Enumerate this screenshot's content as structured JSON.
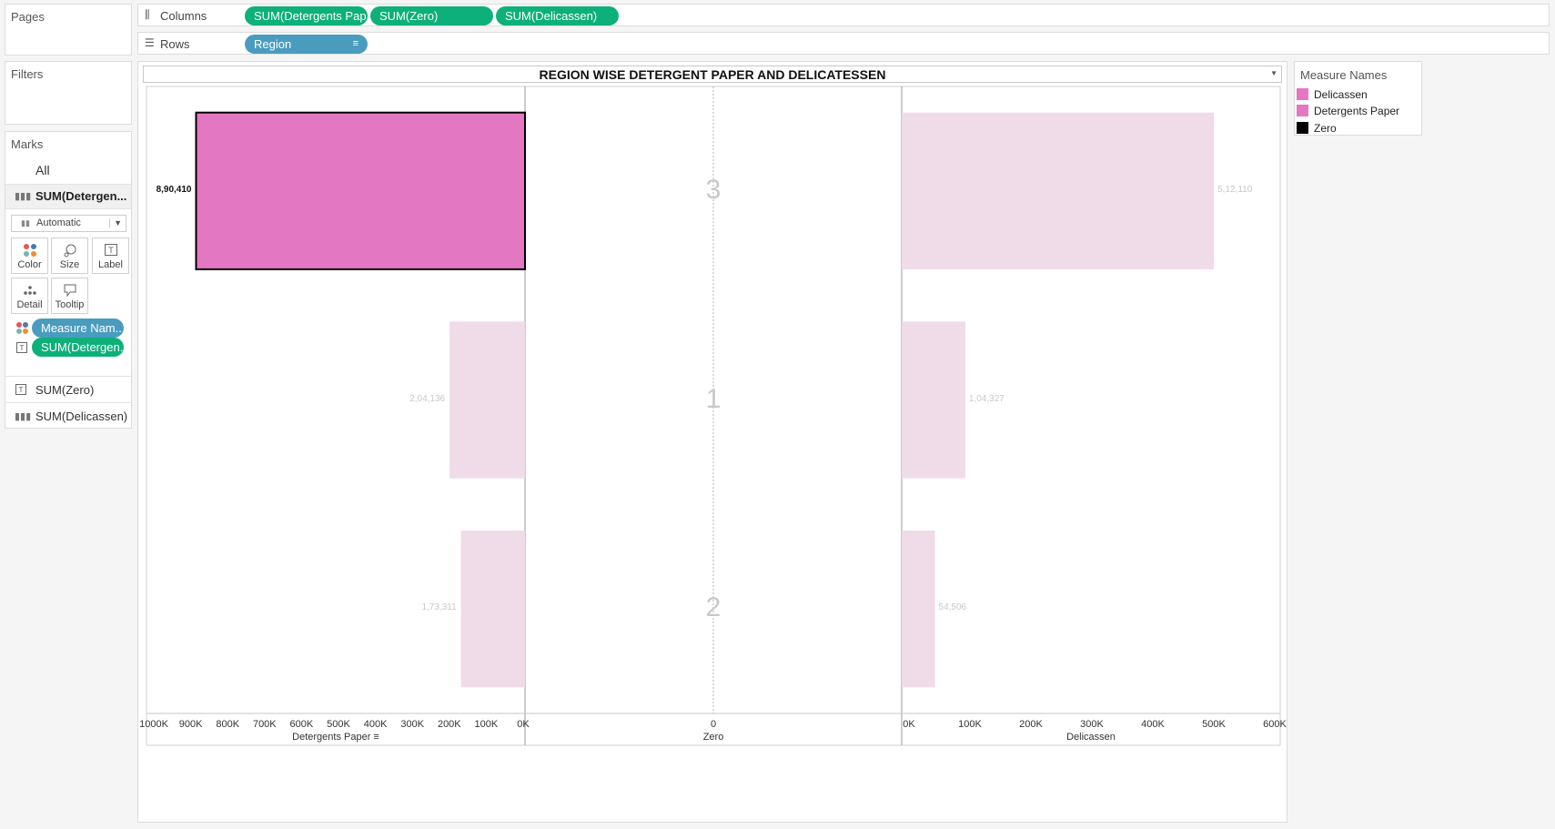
{
  "left_panel": {
    "pages_title": "Pages",
    "filters_title": "Filters",
    "marks_title": "Marks",
    "marks_all": "All",
    "marks_active": "SUM(Detergen...",
    "mark_type": "Automatic",
    "buttons": {
      "color": "Color",
      "size": "Size",
      "label": "Label",
      "detail": "Detail",
      "tooltip": "Tooltip"
    },
    "mark_pills": [
      "Measure Nam..",
      "SUM(Detergen.."
    ],
    "other_marks": [
      "SUM(Zero)",
      "SUM(Delicassen)"
    ]
  },
  "shelves": {
    "columns_label": "Columns",
    "columns_pills": [
      "SUM(Detergents Pap..",
      "SUM(Zero)",
      "SUM(Delicassen)"
    ],
    "rows_label": "Rows",
    "rows_pills": [
      "Region"
    ]
  },
  "legend": {
    "title": "Measure Names",
    "items": [
      {
        "label": "Delicassen",
        "color": "#e377c2"
      },
      {
        "label": "Detergents Paper",
        "color": "#e377c2"
      },
      {
        "label": "Zero",
        "color": "#000000"
      }
    ]
  },
  "chart_data": {
    "type": "bar",
    "title": "REGION WISE DETERGENT PAPER AND DELICATESSEN",
    "categories": [
      "3",
      "1",
      "2"
    ],
    "series": [
      {
        "name": "Detergents Paper",
        "values": [
          890410,
          204136,
          173311
        ],
        "labels": [
          "8,90,410",
          "2,04,136",
          "1,73,311"
        ],
        "xlim": [
          1000000,
          0
        ]
      },
      {
        "name": "Zero",
        "values": [
          0,
          0,
          0
        ]
      },
      {
        "name": "Delicassen",
        "values": [
          512110,
          104327,
          54506
        ],
        "labels": [
          "5,12,110",
          "1,04,327",
          "54,506"
        ],
        "xlim": [
          0,
          600000
        ]
      }
    ],
    "axes": {
      "detergents_ticks": [
        "1000K",
        "900K",
        "800K",
        "700K",
        "600K",
        "500K",
        "400K",
        "300K",
        "200K",
        "100K",
        "0K"
      ],
      "zero_ticks": [
        "0"
      ],
      "delicassen_ticks": [
        "0K",
        "100K",
        "200K",
        "300K",
        "400K",
        "500K",
        "600K"
      ],
      "detergents_title": "Detergents Paper",
      "zero_title": "Zero",
      "delicassen_title": "Delicassen"
    },
    "highlight_color": "#e377c2",
    "faded_color": "#f0dbe9",
    "highlighted_category": "3"
  }
}
